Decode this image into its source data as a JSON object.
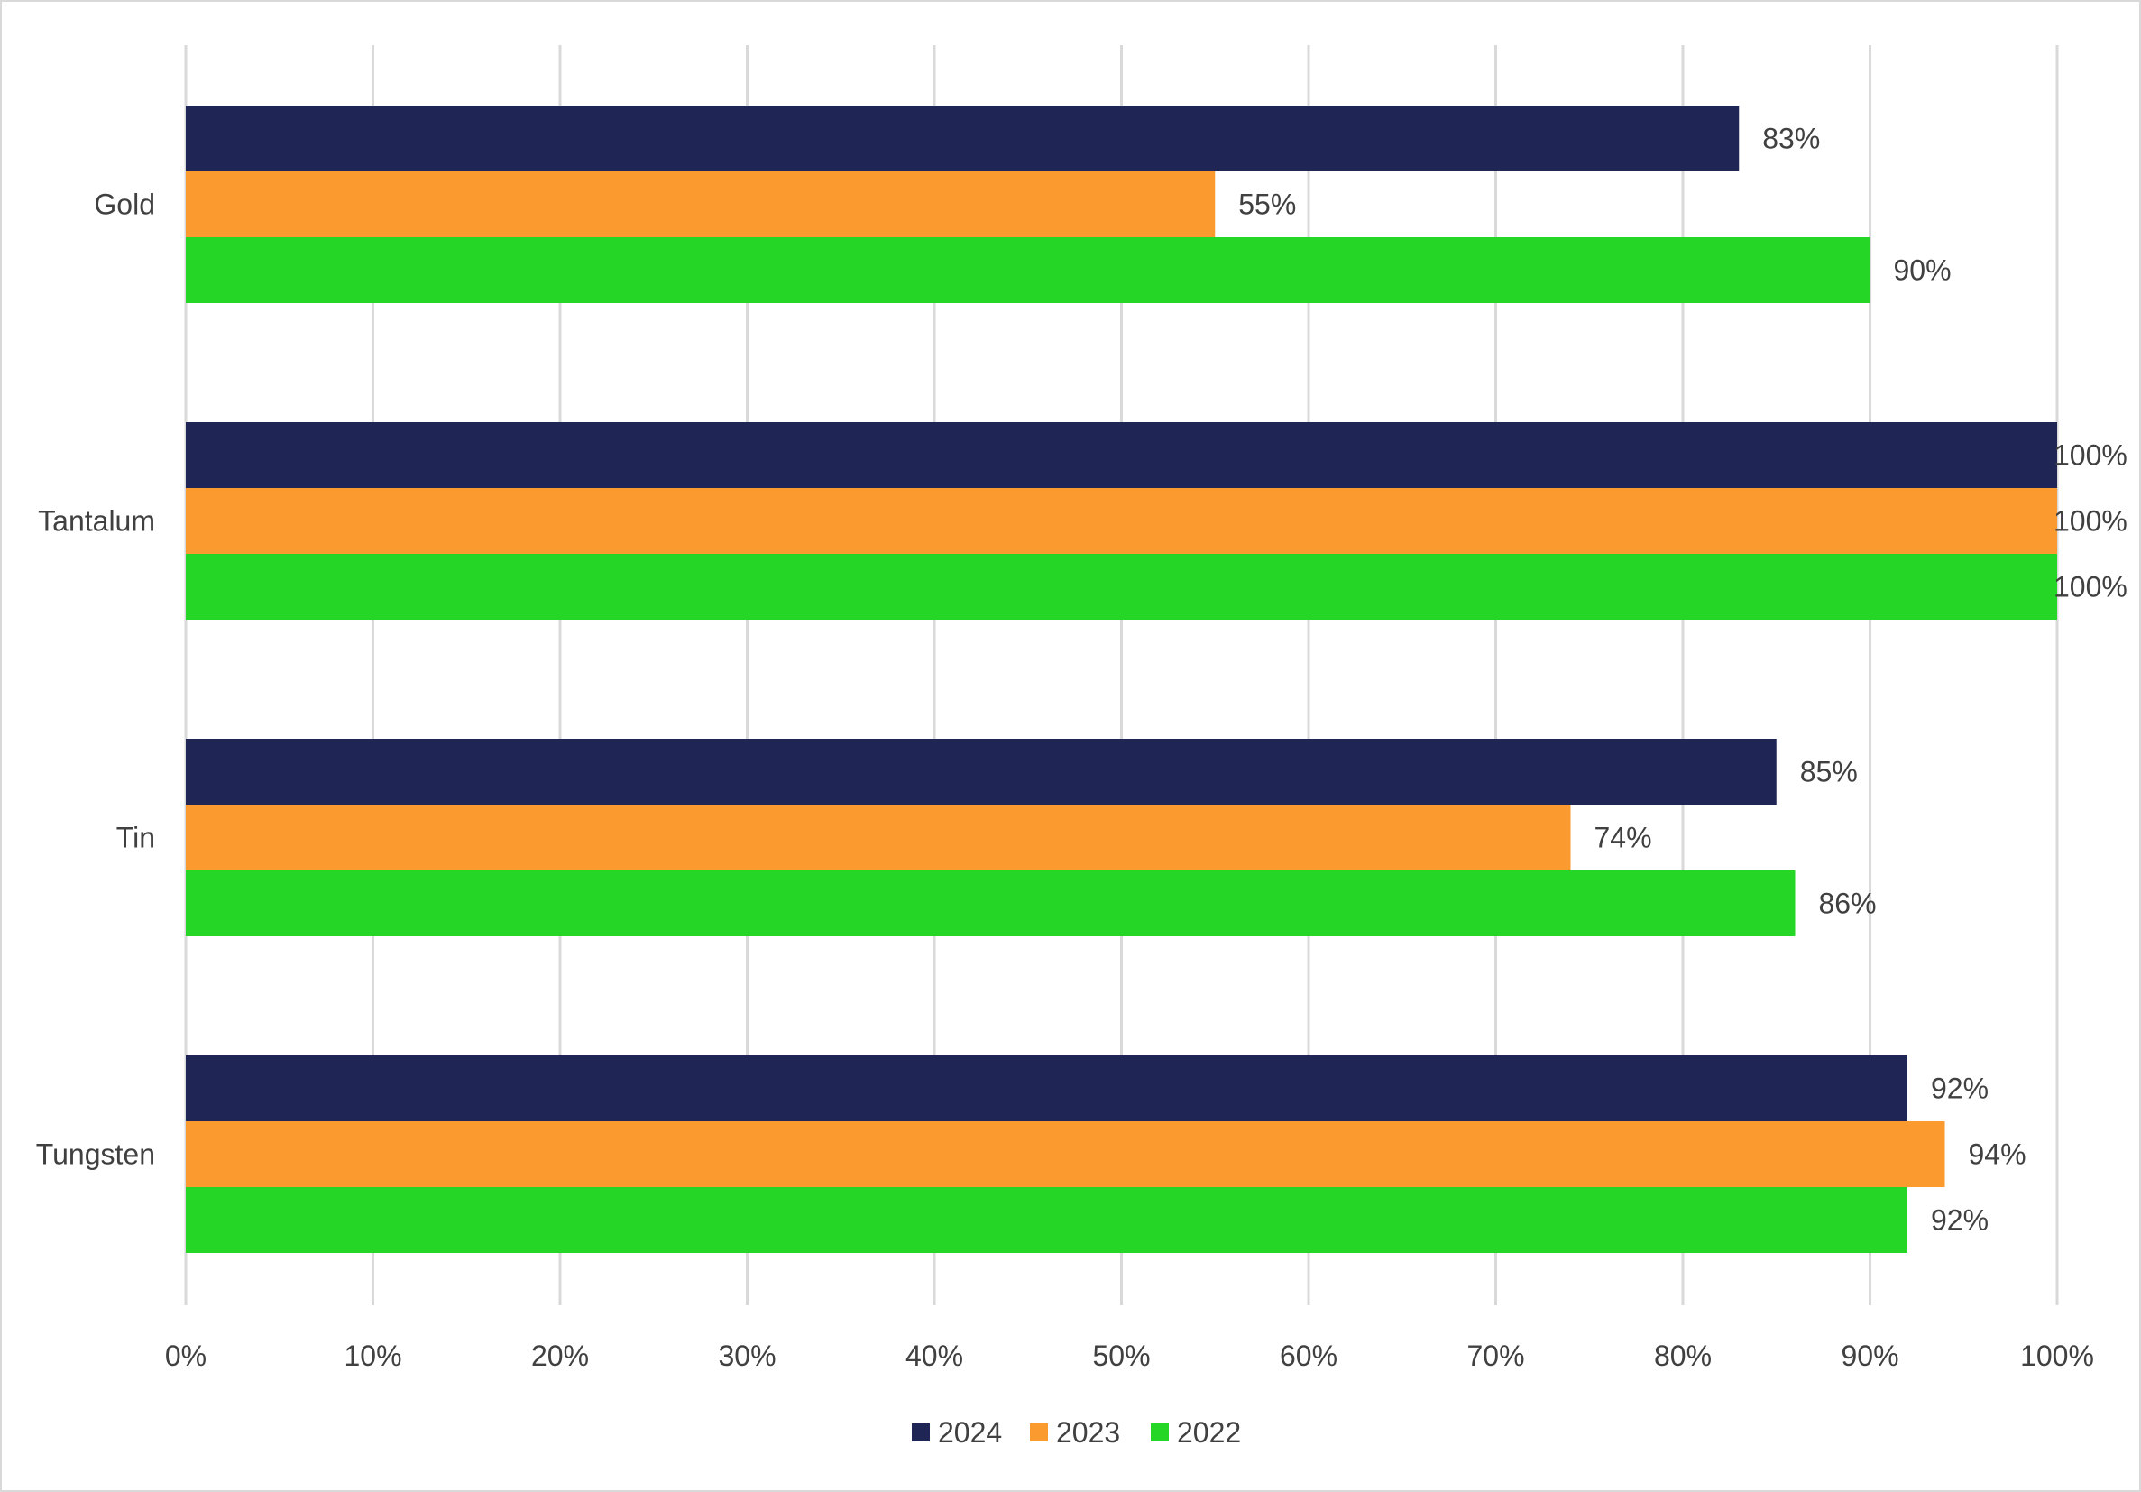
{
  "chart_data": {
    "type": "bar",
    "orientation": "horizontal",
    "categories": [
      "Gold",
      "Tantalum",
      "Tin",
      "Tungsten"
    ],
    "series": [
      {
        "name": "2024",
        "color": "#1f2555",
        "values": [
          83,
          100,
          85,
          92
        ],
        "labels": [
          "83%",
          "100%",
          "85%",
          "92%"
        ]
      },
      {
        "name": "2023",
        "color": "#fb9a2e",
        "values": [
          55,
          100,
          74,
          94
        ],
        "labels": [
          "55%",
          "100%",
          "74%",
          "94%"
        ]
      },
      {
        "name": "2022",
        "color": "#26d627",
        "values": [
          90,
          100,
          86,
          92
        ],
        "labels": [
          "90%",
          "100%",
          "86%",
          "92%"
        ]
      }
    ],
    "xlim": [
      0,
      100
    ],
    "xticks": [
      0,
      10,
      20,
      30,
      40,
      50,
      60,
      70,
      80,
      90,
      100
    ],
    "xtick_labels": [
      "0%",
      "10%",
      "20%",
      "30%",
      "40%",
      "50%",
      "60%",
      "70%",
      "80%",
      "90%",
      "100%"
    ],
    "title": "",
    "xlabel": "",
    "ylabel": "",
    "grid": "vertical",
    "legend_position": "bottom-center"
  }
}
